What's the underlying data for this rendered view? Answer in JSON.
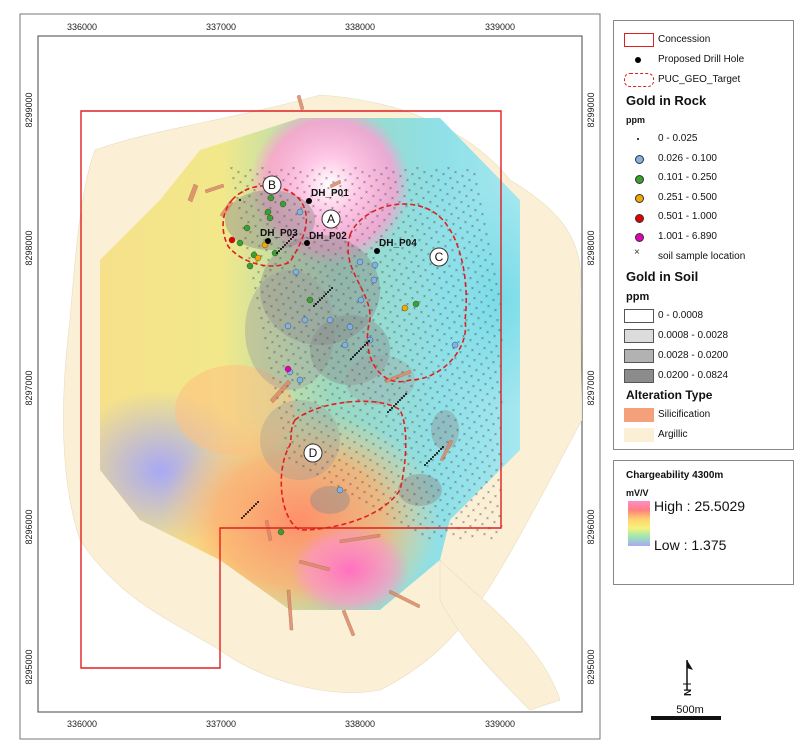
{
  "axes": {
    "x_ticks": [
      "336000",
      "337000",
      "338000",
      "339000"
    ],
    "y_ticks": [
      "8299000",
      "8298000",
      "8297000",
      "8296000",
      "8295000"
    ]
  },
  "map_labels": {
    "drill_holes": [
      "DH_P01",
      "DH_P02",
      "DH_P03",
      "DH_P04"
    ],
    "targets": [
      "A",
      "B",
      "C",
      "D"
    ]
  },
  "legend": {
    "concession": "Concession",
    "drill_hole": "Proposed Drill Hole",
    "target": "PUC_GEO_Target",
    "gold_rock": {
      "title": "Gold in Rock",
      "unit": "ppm",
      "classes": [
        {
          "label": "0 - 0.025",
          "color": "#000000"
        },
        {
          "label": "0.026 - 0.100",
          "color": "#7fb3e6"
        },
        {
          "label": "0.101 - 0.250",
          "color": "#3aa02e"
        },
        {
          "label": "0.251 - 0.500",
          "color": "#f5a700"
        },
        {
          "label": "0.501 - 1.000",
          "color": "#e60000"
        },
        {
          "label": "1.001 - 6.890",
          "color": "#e600b4"
        }
      ],
      "soil_location": "soil sample location"
    },
    "gold_soil": {
      "title": "Gold in Soil",
      "unit": "ppm",
      "classes": [
        {
          "label": "0 - 0.0008",
          "color": "#ffffff"
        },
        {
          "label": "0.0008 - 0.0028",
          "color": "#dcdcdc"
        },
        {
          "label": "0.0028 - 0.0200",
          "color": "#b2b2b2"
        },
        {
          "label": "0.0200 - 0.0824",
          "color": "#8c8c8c"
        }
      ]
    },
    "alteration": {
      "title": "Alteration Type",
      "classes": [
        {
          "label": "Silicification",
          "color": "#f4a07a"
        },
        {
          "label": "Argillic",
          "color": "#fbf0d6"
        }
      ]
    }
  },
  "chargeability": {
    "title": "Chargeability 4300m",
    "unit": "mV/V",
    "high": "High : 25.5029",
    "low": "Low : 1.375"
  },
  "scale_bar": "500m",
  "north_arrow": "N"
}
